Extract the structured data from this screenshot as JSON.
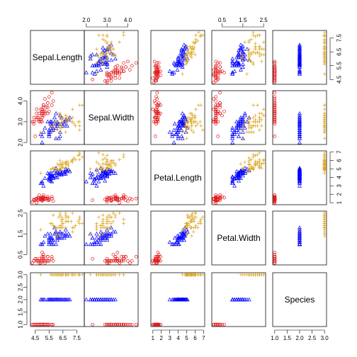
{
  "chart_data": {
    "type": "scatter",
    "title": "",
    "variables": [
      "Sepal.Length",
      "Sepal.Width",
      "Petal.Length",
      "Petal.Width",
      "Species"
    ],
    "ranges": [
      [
        4.3,
        7.9
      ],
      [
        2.0,
        4.4
      ],
      [
        1.0,
        6.9
      ],
      [
        0.1,
        2.5
      ],
      [
        1,
        3
      ]
    ],
    "ticks": [
      [
        4.5,
        5.5,
        6.5,
        7.5
      ],
      [
        2.0,
        3.0,
        4.0
      ],
      [
        1,
        2,
        3,
        4,
        5,
        6,
        7
      ],
      [
        0.5,
        1.5,
        2.5
      ],
      [
        1.0,
        1.5,
        2.0,
        2.5,
        3.0
      ]
    ],
    "tick_labels": [
      [
        "4.5",
        "5.5",
        "6.5",
        "7.5"
      ],
      [
        "2.0",
        "3.0",
        "4.0"
      ],
      [
        "1",
        "2",
        "3",
        "4",
        "5",
        "6",
        "7"
      ],
      [
        "0.5",
        "1.5",
        "2.5"
      ],
      [
        "1.0",
        "1.5",
        "2.0",
        "2.5",
        "3.0"
      ]
    ],
    "axis_sides": {
      "top": [
        1,
        3
      ],
      "bottom": [
        0,
        2,
        4
      ],
      "left": [
        1,
        3,
        4
      ],
      "right": [
        0,
        2
      ]
    },
    "series": [
      {
        "color": "#e41a1c",
        "marker": "circle",
        "points": [
          [
            5.1,
            3.5,
            1.4,
            0.2,
            1
          ],
          [
            4.9,
            3.0,
            1.4,
            0.2,
            1
          ],
          [
            4.7,
            3.2,
            1.3,
            0.2,
            1
          ],
          [
            4.6,
            3.1,
            1.5,
            0.2,
            1
          ],
          [
            5.0,
            3.6,
            1.4,
            0.2,
            1
          ],
          [
            5.4,
            3.9,
            1.7,
            0.4,
            1
          ],
          [
            4.6,
            3.4,
            1.4,
            0.3,
            1
          ],
          [
            5.0,
            3.4,
            1.5,
            0.2,
            1
          ],
          [
            4.4,
            2.9,
            1.4,
            0.2,
            1
          ],
          [
            4.9,
            3.1,
            1.5,
            0.1,
            1
          ],
          [
            5.4,
            3.7,
            1.5,
            0.2,
            1
          ],
          [
            4.8,
            3.4,
            1.6,
            0.2,
            1
          ],
          [
            4.8,
            3.0,
            1.4,
            0.1,
            1
          ],
          [
            4.3,
            3.0,
            1.1,
            0.1,
            1
          ],
          [
            5.8,
            4.0,
            1.2,
            0.2,
            1
          ],
          [
            5.7,
            4.4,
            1.5,
            0.4,
            1
          ],
          [
            5.4,
            3.9,
            1.3,
            0.4,
            1
          ],
          [
            5.1,
            3.5,
            1.4,
            0.3,
            1
          ],
          [
            5.7,
            3.8,
            1.7,
            0.3,
            1
          ],
          [
            5.1,
            3.8,
            1.5,
            0.3,
            1
          ],
          [
            5.4,
            3.4,
            1.7,
            0.2,
            1
          ],
          [
            5.1,
            3.7,
            1.5,
            0.4,
            1
          ],
          [
            4.6,
            3.6,
            1.0,
            0.2,
            1
          ],
          [
            5.1,
            3.3,
            1.7,
            0.5,
            1
          ],
          [
            4.8,
            3.4,
            1.9,
            0.2,
            1
          ],
          [
            5.0,
            3.0,
            1.6,
            0.2,
            1
          ],
          [
            5.0,
            3.4,
            1.6,
            0.4,
            1
          ],
          [
            5.2,
            3.5,
            1.5,
            0.2,
            1
          ],
          [
            5.2,
            3.4,
            1.4,
            0.2,
            1
          ],
          [
            4.7,
            3.2,
            1.6,
            0.2,
            1
          ],
          [
            4.8,
            3.1,
            1.6,
            0.2,
            1
          ],
          [
            5.4,
            3.4,
            1.5,
            0.4,
            1
          ],
          [
            5.2,
            4.1,
            1.5,
            0.1,
            1
          ],
          [
            5.5,
            4.2,
            1.4,
            0.2,
            1
          ],
          [
            4.9,
            3.1,
            1.5,
            0.2,
            1
          ],
          [
            5.0,
            3.2,
            1.2,
            0.2,
            1
          ],
          [
            5.5,
            3.5,
            1.3,
            0.2,
            1
          ],
          [
            4.9,
            3.6,
            1.4,
            0.1,
            1
          ],
          [
            4.4,
            3.0,
            1.3,
            0.2,
            1
          ],
          [
            5.1,
            3.4,
            1.5,
            0.2,
            1
          ],
          [
            5.0,
            3.5,
            1.3,
            0.3,
            1
          ],
          [
            4.5,
            2.3,
            1.3,
            0.3,
            1
          ],
          [
            4.4,
            3.2,
            1.3,
            0.2,
            1
          ],
          [
            5.0,
            3.5,
            1.6,
            0.6,
            1
          ],
          [
            5.1,
            3.8,
            1.9,
            0.4,
            1
          ],
          [
            4.8,
            3.0,
            1.4,
            0.3,
            1
          ],
          [
            5.1,
            3.8,
            1.6,
            0.2,
            1
          ],
          [
            4.6,
            3.2,
            1.4,
            0.2,
            1
          ],
          [
            5.3,
            3.7,
            1.5,
            0.2,
            1
          ],
          [
            5.0,
            3.3,
            1.4,
            0.2,
            1
          ]
        ]
      },
      {
        "color": "#0000ff",
        "marker": "triangle",
        "points": [
          [
            7.0,
            3.2,
            4.7,
            1.4,
            2
          ],
          [
            6.4,
            3.2,
            4.5,
            1.5,
            2
          ],
          [
            6.9,
            3.1,
            4.9,
            1.5,
            2
          ],
          [
            5.5,
            2.3,
            4.0,
            1.3,
            2
          ],
          [
            6.5,
            2.8,
            4.6,
            1.5,
            2
          ],
          [
            5.7,
            2.8,
            4.5,
            1.3,
            2
          ],
          [
            6.3,
            3.3,
            4.7,
            1.6,
            2
          ],
          [
            4.9,
            2.4,
            3.3,
            1.0,
            2
          ],
          [
            6.6,
            2.9,
            4.6,
            1.3,
            2
          ],
          [
            5.2,
            2.7,
            3.9,
            1.4,
            2
          ],
          [
            5.0,
            2.0,
            3.5,
            1.0,
            2
          ],
          [
            5.9,
            3.0,
            4.2,
            1.5,
            2
          ],
          [
            6.0,
            2.2,
            4.0,
            1.0,
            2
          ],
          [
            6.1,
            2.9,
            4.7,
            1.4,
            2
          ],
          [
            5.6,
            2.9,
            3.6,
            1.3,
            2
          ],
          [
            6.7,
            3.1,
            4.4,
            1.4,
            2
          ],
          [
            5.6,
            3.0,
            4.5,
            1.5,
            2
          ],
          [
            5.8,
            2.7,
            4.1,
            1.0,
            2
          ],
          [
            6.2,
            2.2,
            4.5,
            1.5,
            2
          ],
          [
            5.6,
            2.5,
            3.9,
            1.1,
            2
          ],
          [
            5.9,
            3.2,
            4.8,
            1.8,
            2
          ],
          [
            6.1,
            2.8,
            4.0,
            1.3,
            2
          ],
          [
            6.3,
            2.5,
            4.9,
            1.5,
            2
          ],
          [
            6.1,
            2.8,
            4.7,
            1.2,
            2
          ],
          [
            6.4,
            2.9,
            4.3,
            1.3,
            2
          ],
          [
            6.6,
            3.0,
            4.4,
            1.4,
            2
          ],
          [
            6.8,
            2.8,
            4.8,
            1.4,
            2
          ],
          [
            6.7,
            3.0,
            5.0,
            1.7,
            2
          ],
          [
            6.0,
            2.9,
            4.5,
            1.5,
            2
          ],
          [
            5.7,
            2.6,
            3.5,
            1.0,
            2
          ],
          [
            5.5,
            2.4,
            3.8,
            1.1,
            2
          ],
          [
            5.5,
            2.4,
            3.7,
            1.0,
            2
          ],
          [
            5.8,
            2.7,
            3.9,
            1.2,
            2
          ],
          [
            6.0,
            2.7,
            5.1,
            1.6,
            2
          ],
          [
            5.4,
            3.0,
            4.5,
            1.5,
            2
          ],
          [
            6.0,
            3.4,
            4.5,
            1.6,
            2
          ],
          [
            6.7,
            3.1,
            4.7,
            1.5,
            2
          ],
          [
            6.3,
            2.3,
            4.4,
            1.3,
            2
          ],
          [
            5.6,
            3.0,
            4.1,
            1.3,
            2
          ],
          [
            5.5,
            2.5,
            4.0,
            1.3,
            2
          ],
          [
            5.5,
            2.6,
            4.4,
            1.2,
            2
          ],
          [
            6.1,
            3.0,
            4.6,
            1.4,
            2
          ],
          [
            5.8,
            2.6,
            4.0,
            1.2,
            2
          ],
          [
            5.0,
            2.3,
            3.3,
            1.0,
            2
          ],
          [
            5.6,
            2.7,
            4.2,
            1.3,
            2
          ],
          [
            5.7,
            3.0,
            4.2,
            1.2,
            2
          ],
          [
            5.7,
            2.9,
            4.2,
            1.3,
            2
          ],
          [
            6.2,
            2.9,
            4.3,
            1.3,
            2
          ],
          [
            5.1,
            2.5,
            3.0,
            1.1,
            2
          ],
          [
            5.7,
            2.8,
            4.1,
            1.3,
            2
          ]
        ]
      },
      {
        "color": "#daa520",
        "marker": "plus",
        "points": [
          [
            6.3,
            3.3,
            6.0,
            2.5,
            3
          ],
          [
            5.8,
            2.7,
            5.1,
            1.9,
            3
          ],
          [
            7.1,
            3.0,
            5.9,
            2.1,
            3
          ],
          [
            6.3,
            2.9,
            5.6,
            1.8,
            3
          ],
          [
            6.5,
            3.0,
            5.8,
            2.2,
            3
          ],
          [
            7.6,
            3.0,
            6.6,
            2.1,
            3
          ],
          [
            4.9,
            2.5,
            4.5,
            1.7,
            3
          ],
          [
            7.3,
            2.9,
            6.3,
            1.8,
            3
          ],
          [
            6.7,
            2.5,
            5.8,
            1.8,
            3
          ],
          [
            7.2,
            3.6,
            6.1,
            2.5,
            3
          ],
          [
            6.5,
            3.2,
            5.1,
            2.0,
            3
          ],
          [
            6.4,
            2.7,
            5.3,
            1.9,
            3
          ],
          [
            6.8,
            3.0,
            5.5,
            2.1,
            3
          ],
          [
            5.7,
            2.5,
            5.0,
            2.0,
            3
          ],
          [
            5.8,
            2.8,
            5.1,
            2.4,
            3
          ],
          [
            6.4,
            3.2,
            5.3,
            2.3,
            3
          ],
          [
            6.5,
            3.0,
            5.5,
            1.8,
            3
          ],
          [
            7.7,
            3.8,
            6.7,
            2.2,
            3
          ],
          [
            7.7,
            2.6,
            6.9,
            2.3,
            3
          ],
          [
            6.0,
            2.2,
            5.0,
            1.5,
            3
          ],
          [
            6.9,
            3.2,
            5.7,
            2.3,
            3
          ],
          [
            5.6,
            2.8,
            4.9,
            2.0,
            3
          ],
          [
            7.7,
            2.8,
            6.7,
            2.0,
            3
          ],
          [
            6.3,
            2.7,
            4.9,
            1.8,
            3
          ],
          [
            6.7,
            3.3,
            5.7,
            2.1,
            3
          ],
          [
            7.2,
            3.2,
            6.0,
            1.8,
            3
          ],
          [
            6.2,
            2.8,
            4.8,
            1.8,
            3
          ],
          [
            6.1,
            3.0,
            4.9,
            1.8,
            3
          ],
          [
            6.4,
            2.8,
            5.6,
            2.1,
            3
          ],
          [
            7.2,
            3.0,
            5.8,
            1.6,
            3
          ],
          [
            7.4,
            2.8,
            6.1,
            1.9,
            3
          ],
          [
            7.9,
            3.8,
            6.4,
            2.0,
            3
          ],
          [
            6.4,
            2.8,
            5.6,
            2.2,
            3
          ],
          [
            6.3,
            2.8,
            5.1,
            1.5,
            3
          ],
          [
            6.1,
            2.6,
            5.6,
            1.4,
            3
          ],
          [
            7.7,
            3.0,
            6.1,
            2.3,
            3
          ],
          [
            6.3,
            3.4,
            5.6,
            2.4,
            3
          ],
          [
            6.4,
            3.1,
            5.5,
            1.8,
            3
          ],
          [
            6.0,
            3.0,
            4.8,
            1.8,
            3
          ],
          [
            6.9,
            3.1,
            5.4,
            2.1,
            3
          ],
          [
            6.7,
            3.1,
            5.6,
            2.4,
            3
          ],
          [
            6.9,
            3.1,
            5.1,
            2.3,
            3
          ],
          [
            5.8,
            2.7,
            5.1,
            1.9,
            3
          ],
          [
            6.8,
            3.2,
            5.9,
            2.3,
            3
          ],
          [
            6.7,
            3.3,
            5.7,
            2.5,
            3
          ],
          [
            6.7,
            3.0,
            5.2,
            2.3,
            3
          ],
          [
            6.3,
            2.5,
            5.0,
            1.9,
            3
          ],
          [
            6.5,
            3.0,
            5.2,
            2.0,
            3
          ],
          [
            6.2,
            3.4,
            5.4,
            2.3,
            3
          ],
          [
            5.9,
            3.0,
            5.1,
            1.8,
            3
          ]
        ]
      }
    ]
  }
}
